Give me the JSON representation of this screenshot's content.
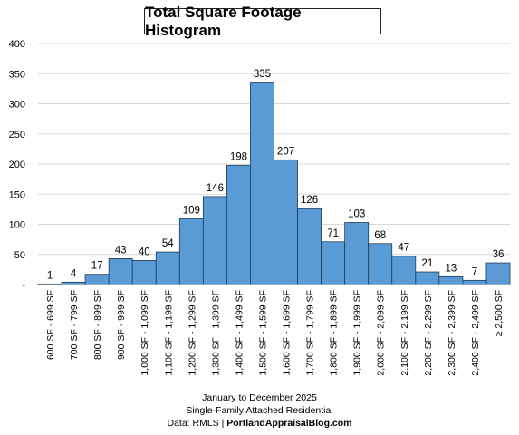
{
  "chart_data": {
    "type": "bar",
    "title": "Total Square Footage Histogram",
    "xlabel": "",
    "ylabel": "",
    "ylim": [
      0,
      400
    ],
    "yticks": [
      "-",
      "50",
      "100",
      "150",
      "200",
      "250",
      "300",
      "350",
      "400"
    ],
    "ytick_values": [
      0,
      50,
      100,
      150,
      200,
      250,
      300,
      350,
      400
    ],
    "grid": true,
    "bar_color": "#5b9bd5",
    "bar_edge_color": "#1f3b57",
    "categories": [
      "600 SF - 699 SF",
      "700 SF - 799 SF",
      "800 SF - 899 SF",
      "900 SF - 999 SF",
      "1,000 SF - 1,099 SF",
      "1,100 SF - 1,199 SF",
      "1,200 SF - 1,299 SF",
      "1,300 SF - 1,399 SF",
      "1,400 SF - 1,499 SF",
      "1,500 SF - 1,599 SF",
      "1,600 SF - 1,699 SF",
      "1,700 SF - 1,799 SF",
      "1,800 SF - 1,899 SF",
      "1,900 SF - 1,999 SF",
      "2,000 SF - 2,099 SF",
      "2,100 SF - 2,199 SF",
      "2,200 SF - 2,299 SF",
      "2,300 SF - 2,399 SF",
      "2,400 SF - 2,499 SF",
      "≥ 2,500 SF"
    ],
    "values": [
      1,
      4,
      17,
      43,
      40,
      54,
      109,
      146,
      198,
      335,
      207,
      126,
      71,
      103,
      68,
      47,
      21,
      13,
      7,
      36
    ]
  },
  "footer": {
    "line1": "January to December 2025",
    "line2": "Single-Family Attached Residential",
    "line3_prefix": "Data: RMLS | ",
    "line3_bold": "PortlandAppraisalBlog.com"
  }
}
